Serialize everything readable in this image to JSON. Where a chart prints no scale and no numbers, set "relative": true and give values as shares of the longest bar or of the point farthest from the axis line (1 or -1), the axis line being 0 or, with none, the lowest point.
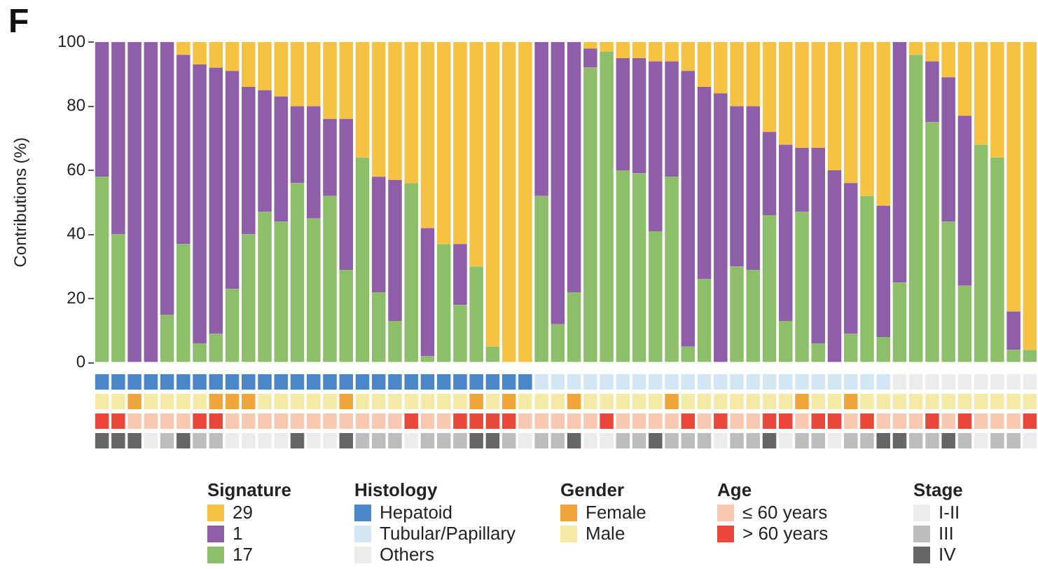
{
  "chart_data": [
    {
      "type": "bar",
      "title": "F",
      "ylabel": "Contributions (%)",
      "legend_title": "Signature",
      "stacked": true,
      "legend": "bottom",
      "tick_labels": "y",
      "ylim": [
        0,
        100
      ],
      "yticks": [
        0,
        20,
        40,
        60,
        80,
        100
      ],
      "categories": [
        null,
        null,
        null,
        null,
        null,
        null,
        null,
        null,
        null,
        null,
        null,
        null,
        null,
        null,
        null,
        null,
        null,
        null,
        null,
        null,
        null,
        null,
        null,
        null,
        null,
        null,
        null,
        null,
        null,
        null,
        null,
        null,
        null,
        null,
        null,
        null,
        null,
        null,
        null,
        null,
        null,
        null,
        null,
        null,
        null,
        null,
        null,
        null,
        null,
        null,
        null,
        null,
        null,
        null,
        null,
        null,
        null,
        null
      ],
      "series": [
        {
          "name": "17",
          "color": "#8dbf6a",
          "values": [
            58,
            40,
            0,
            0,
            15,
            37,
            6,
            9,
            23,
            40,
            47,
            44,
            56,
            45,
            52,
            29,
            64,
            22,
            13,
            56,
            2,
            37,
            18,
            30,
            5,
            0,
            0,
            52,
            12,
            22,
            92,
            97,
            60,
            59,
            41,
            58,
            5,
            26,
            0,
            30,
            29,
            46,
            13,
            47,
            6,
            0,
            9,
            52,
            8,
            25,
            96,
            75,
            44,
            24,
            68,
            64,
            4,
            4
          ]
        },
        {
          "name": "1",
          "color": "#8e5ea8",
          "values": [
            42,
            60,
            100,
            100,
            85,
            59,
            87,
            83,
            68,
            46,
            38,
            39,
            24,
            35,
            24,
            47,
            0,
            36,
            44,
            0,
            40,
            0,
            19,
            0,
            0,
            0,
            0,
            48,
            88,
            78,
            6,
            0,
            35,
            36,
            53,
            36,
            86,
            60,
            84,
            50,
            51,
            26,
            55,
            20,
            61,
            60,
            47,
            0,
            41,
            75,
            0,
            19,
            45,
            53,
            0,
            0,
            12,
            0
          ]
        },
        {
          "name": "29",
          "color": "#f5c242",
          "values": [
            0,
            0,
            0,
            0,
            0,
            4,
            7,
            8,
            9,
            14,
            15,
            17,
            20,
            20,
            24,
            24,
            36,
            42,
            43,
            44,
            58,
            63,
            63,
            70,
            95,
            100,
            100,
            0,
            0,
            0,
            2,
            3,
            5,
            5,
            6,
            6,
            9,
            14,
            16,
            20,
            20,
            28,
            32,
            33,
            33,
            40,
            44,
            48,
            51,
            0,
            4,
            6,
            11,
            23,
            32,
            36,
            84,
            96
          ]
        }
      ]
    },
    {
      "type": "bar",
      "relative": true,
      "stacked": true,
      "legend_title": "Histology",
      "legend": "bottom",
      "tick_labels": false,
      "categories": [
        null,
        null,
        null,
        null,
        null,
        null,
        null,
        null,
        null,
        null,
        null,
        null,
        null,
        null,
        null,
        null,
        null,
        null,
        null,
        null,
        null,
        null,
        null,
        null,
        null,
        null,
        null,
        null,
        null,
        null,
        null,
        null,
        null,
        null,
        null,
        null,
        null,
        null,
        null,
        null,
        null,
        null,
        null,
        null,
        null,
        null,
        null,
        null,
        null,
        null,
        null,
        null,
        null,
        null,
        null,
        null,
        null,
        null
      ],
      "series": [
        {
          "name": "Hepatoid",
          "color": "#4a86c8",
          "values": [
            1,
            1,
            1,
            1,
            1,
            1,
            1,
            1,
            1,
            1,
            1,
            1,
            1,
            1,
            1,
            1,
            1,
            1,
            1,
            1,
            1,
            1,
            1,
            1,
            1,
            1,
            1,
            null,
            null,
            null,
            null,
            null,
            null,
            null,
            null,
            null,
            null,
            null,
            null,
            null,
            null,
            null,
            null,
            null,
            null,
            null,
            null,
            null,
            null,
            null,
            null,
            null,
            null,
            null,
            null,
            null,
            null,
            null
          ]
        },
        {
          "name": "Tubular/Papillary",
          "color": "#d3e6f4",
          "values": [
            null,
            null,
            null,
            null,
            null,
            null,
            null,
            null,
            null,
            null,
            null,
            null,
            null,
            null,
            null,
            null,
            null,
            null,
            null,
            null,
            null,
            null,
            null,
            null,
            null,
            null,
            null,
            1,
            1,
            1,
            1,
            1,
            1,
            1,
            1,
            1,
            1,
            1,
            1,
            1,
            1,
            1,
            1,
            1,
            1,
            1,
            1,
            1,
            1,
            null,
            null,
            null,
            null,
            null,
            null,
            null,
            null,
            null
          ]
        },
        {
          "name": "Others",
          "color": "#ececec",
          "values": [
            null,
            null,
            null,
            null,
            null,
            null,
            null,
            null,
            null,
            null,
            null,
            null,
            null,
            null,
            null,
            null,
            null,
            null,
            null,
            null,
            null,
            null,
            null,
            null,
            null,
            null,
            null,
            null,
            null,
            null,
            null,
            null,
            null,
            null,
            null,
            null,
            null,
            null,
            null,
            null,
            null,
            null,
            null,
            null,
            null,
            null,
            null,
            null,
            null,
            1,
            1,
            1,
            1,
            1,
            1,
            1,
            1,
            1
          ]
        }
      ]
    },
    {
      "type": "bar",
      "relative": true,
      "stacked": true,
      "legend_title": "Gender",
      "legend": "bottom",
      "tick_labels": false,
      "categories": [
        null,
        null,
        null,
        null,
        null,
        null,
        null,
        null,
        null,
        null,
        null,
        null,
        null,
        null,
        null,
        null,
        null,
        null,
        null,
        null,
        null,
        null,
        null,
        null,
        null,
        null,
        null,
        null,
        null,
        null,
        null,
        null,
        null,
        null,
        null,
        null,
        null,
        null,
        null,
        null,
        null,
        null,
        null,
        null,
        null,
        null,
        null,
        null,
        null,
        null,
        null,
        null,
        null,
        null,
        null,
        null,
        null,
        null
      ],
      "series": [
        {
          "name": "Female",
          "color": "#f0a63a",
          "values": [
            null,
            null,
            1,
            null,
            null,
            null,
            null,
            1,
            1,
            1,
            null,
            null,
            null,
            null,
            null,
            1,
            null,
            null,
            null,
            null,
            null,
            null,
            null,
            1,
            null,
            1,
            null,
            null,
            null,
            1,
            null,
            null,
            null,
            null,
            null,
            1,
            null,
            null,
            null,
            null,
            null,
            null,
            null,
            1,
            null,
            null,
            1,
            null,
            null,
            null,
            null,
            null,
            null,
            null,
            null,
            null,
            null,
            null
          ]
        },
        {
          "name": "Male",
          "color": "#f5eaa5",
          "values": [
            1,
            1,
            null,
            1,
            1,
            1,
            1,
            null,
            null,
            null,
            1,
            1,
            1,
            1,
            1,
            null,
            1,
            1,
            1,
            1,
            1,
            1,
            1,
            null,
            1,
            null,
            1,
            1,
            1,
            null,
            1,
            1,
            1,
            1,
            1,
            null,
            1,
            1,
            1,
            1,
            1,
            1,
            1,
            null,
            1,
            1,
            null,
            1,
            1,
            1,
            1,
            1,
            1,
            1,
            1,
            1,
            1,
            1
          ]
        }
      ]
    },
    {
      "type": "bar",
      "relative": true,
      "stacked": true,
      "legend_title": "Age",
      "legend": "bottom",
      "tick_labels": false,
      "categories": [
        null,
        null,
        null,
        null,
        null,
        null,
        null,
        null,
        null,
        null,
        null,
        null,
        null,
        null,
        null,
        null,
        null,
        null,
        null,
        null,
        null,
        null,
        null,
        null,
        null,
        null,
        null,
        null,
        null,
        null,
        null,
        null,
        null,
        null,
        null,
        null,
        null,
        null,
        null,
        null,
        null,
        null,
        null,
        null,
        null,
        null,
        null,
        null,
        null,
        null,
        null,
        null,
        null,
        null,
        null,
        null,
        null,
        null
      ],
      "series": [
        {
          "name": "≤ 60 years",
          "color": "#f8c8b0",
          "values": [
            null,
            null,
            1,
            1,
            1,
            1,
            null,
            null,
            1,
            1,
            1,
            1,
            1,
            1,
            1,
            1,
            1,
            1,
            1,
            null,
            1,
            1,
            null,
            null,
            null,
            null,
            1,
            1,
            1,
            1,
            1,
            null,
            1,
            1,
            1,
            1,
            null,
            1,
            null,
            1,
            1,
            null,
            null,
            1,
            null,
            null,
            1,
            null,
            1,
            1,
            1,
            null,
            1,
            null,
            1,
            1,
            1,
            null
          ]
        },
        {
          "name": "> 60 years",
          "color": "#e8473a",
          "values": [
            1,
            1,
            null,
            null,
            null,
            null,
            1,
            1,
            null,
            null,
            null,
            null,
            null,
            null,
            null,
            null,
            null,
            null,
            null,
            1,
            null,
            null,
            1,
            1,
            1,
            1,
            null,
            null,
            null,
            null,
            null,
            1,
            null,
            null,
            null,
            null,
            1,
            null,
            1,
            null,
            null,
            1,
            1,
            null,
            1,
            1,
            null,
            1,
            null,
            null,
            null,
            1,
            null,
            1,
            null,
            null,
            null,
            1
          ]
        }
      ]
    },
    {
      "type": "bar",
      "relative": true,
      "stacked": true,
      "legend_title": "Stage",
      "legend": "bottom",
      "tick_labels": false,
      "categories": [
        null,
        null,
        null,
        null,
        null,
        null,
        null,
        null,
        null,
        null,
        null,
        null,
        null,
        null,
        null,
        null,
        null,
        null,
        null,
        null,
        null,
        null,
        null,
        null,
        null,
        null,
        null,
        null,
        null,
        null,
        null,
        null,
        null,
        null,
        null,
        null,
        null,
        null,
        null,
        null,
        null,
        null,
        null,
        null,
        null,
        null,
        null,
        null,
        null,
        null,
        null,
        null,
        null,
        null,
        null,
        null,
        null,
        null
      ],
      "series": [
        {
          "name": "I-II",
          "color": "#ececec",
          "values": [
            null,
            null,
            null,
            1,
            null,
            null,
            null,
            null,
            1,
            1,
            1,
            1,
            null,
            1,
            1,
            null,
            null,
            null,
            null,
            1,
            null,
            null,
            null,
            null,
            null,
            null,
            1,
            null,
            null,
            null,
            1,
            1,
            null,
            null,
            null,
            null,
            null,
            null,
            1,
            null,
            null,
            null,
            1,
            null,
            null,
            1,
            null,
            null,
            null,
            null,
            null,
            null,
            null,
            null,
            1,
            null,
            null,
            1
          ]
        },
        {
          "name": "III",
          "color": "#bdbdbd",
          "values": [
            null,
            null,
            null,
            null,
            1,
            null,
            1,
            1,
            null,
            null,
            null,
            null,
            null,
            null,
            null,
            null,
            1,
            1,
            1,
            null,
            1,
            1,
            1,
            null,
            null,
            1,
            null,
            1,
            1,
            null,
            null,
            null,
            1,
            1,
            null,
            1,
            1,
            1,
            null,
            1,
            1,
            null,
            null,
            1,
            1,
            null,
            1,
            1,
            null,
            null,
            1,
            1,
            null,
            1,
            null,
            1,
            1,
            null
          ]
        },
        {
          "name": "IV",
          "color": "#666666",
          "values": [
            1,
            1,
            1,
            null,
            null,
            1,
            null,
            null,
            null,
            null,
            null,
            null,
            1,
            null,
            null,
            1,
            null,
            null,
            null,
            null,
            null,
            null,
            null,
            1,
            1,
            null,
            null,
            null,
            null,
            1,
            null,
            null,
            null,
            null,
            1,
            null,
            null,
            null,
            null,
            null,
            null,
            1,
            null,
            null,
            null,
            null,
            null,
            null,
            1,
            1,
            null,
            null,
            1,
            null,
            null,
            null,
            null,
            null
          ]
        }
      ]
    }
  ]
}
